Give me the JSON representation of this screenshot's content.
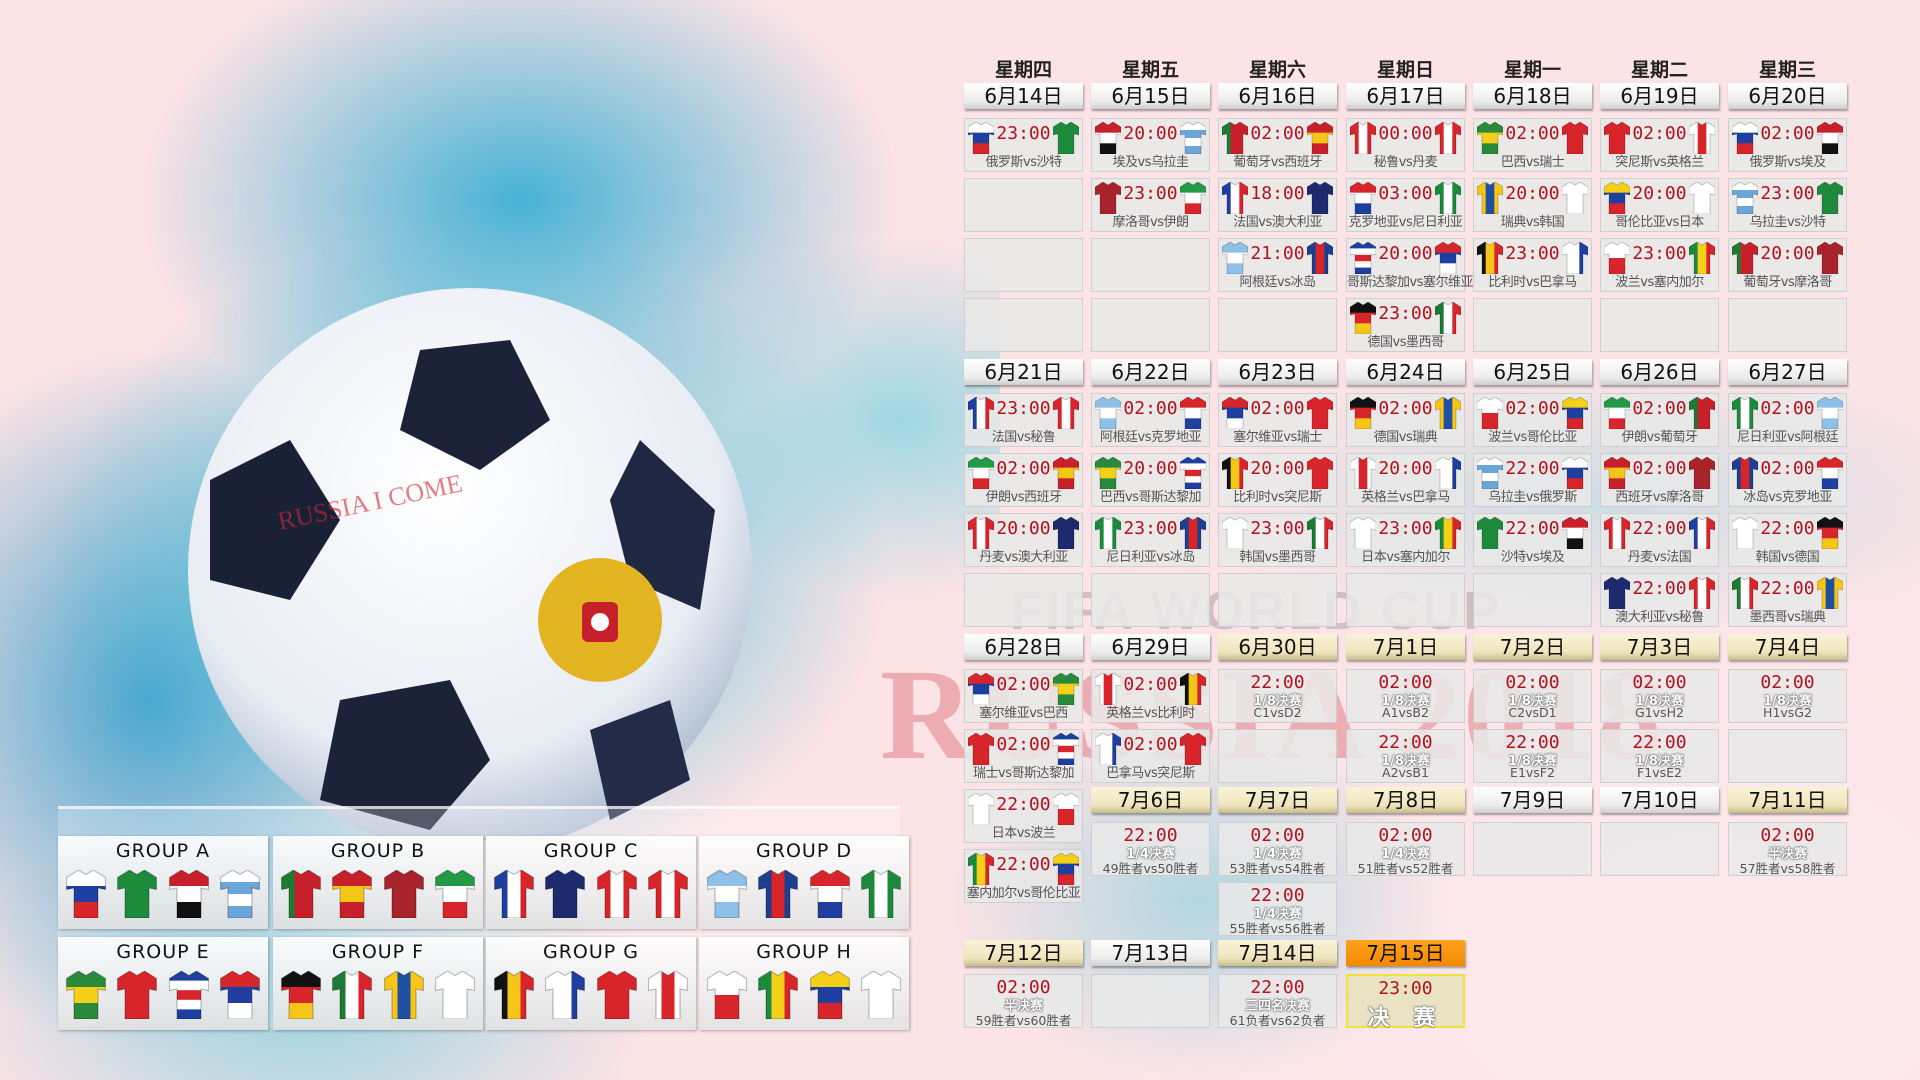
{
  "watermarks": {
    "fifa": "FIFA WORLD CUP",
    "russia": "RUSSIA 2018"
  },
  "ball_text": "RUSSIA I COME",
  "weekdays": [
    "星期四",
    "星期五",
    "星期六",
    "星期日",
    "星期一",
    "星期二",
    "星期三"
  ],
  "team_colors": {
    "俄罗斯": {
      "dir": "h",
      "c": [
        "#ffffff",
        "#1f3fa0",
        "#d8242b"
      ]
    },
    "沙特": {
      "dir": "h",
      "c": [
        "#1e8a3c"
      ]
    },
    "埃及": {
      "dir": "h",
      "c": [
        "#c8202a",
        "#ffffff",
        "#111111"
      ]
    },
    "乌拉圭": {
      "dir": "h",
      "c": [
        "#ffffff",
        "#6aa6d8",
        "#ffffff",
        "#6aa6d8"
      ]
    },
    "葡萄牙": {
      "dir": "v",
      "c": [
        "#1c7a32",
        "#c8202a",
        "#c8202a"
      ]
    },
    "西班牙": {
      "dir": "h",
      "c": [
        "#c8202a",
        "#f5c518",
        "#c8202a"
      ]
    },
    "摩洛哥": {
      "dir": "h",
      "c": [
        "#a9232b"
      ]
    },
    "伊朗": {
      "dir": "h",
      "c": [
        "#239a45",
        "#ffffff",
        "#d8242b"
      ]
    },
    "法国": {
      "dir": "v",
      "c": [
        "#1f3fa0",
        "#ffffff",
        "#d8242b"
      ]
    },
    "澳大利亚": {
      "dir": "h",
      "c": [
        "#1d2a6e"
      ]
    },
    "秘鲁": {
      "dir": "v",
      "c": [
        "#d8242b",
        "#ffffff",
        "#d8242b"
      ]
    },
    "丹麦": {
      "dir": "v",
      "c": [
        "#d8242b",
        "#ffffff",
        "#d8242b"
      ]
    },
    "阿根廷": {
      "dir": "h",
      "c": [
        "#8ec0e8",
        "#ffffff",
        "#8ec0e8"
      ]
    },
    "冰岛": {
      "dir": "v",
      "c": [
        "#1d3f8f",
        "#d8242b",
        "#1d3f8f"
      ]
    },
    "克罗地亚": {
      "dir": "h",
      "c": [
        "#d8242b",
        "#ffffff",
        "#1f3fa0"
      ]
    },
    "尼日利亚": {
      "dir": "v",
      "c": [
        "#1c8a3c",
        "#ffffff",
        "#1c8a3c"
      ]
    },
    "巴西": {
      "dir": "h",
      "c": [
        "#2a8a3c",
        "#f5d018",
        "#2a8a3c"
      ]
    },
    "瑞士": {
      "dir": "h",
      "c": [
        "#d8242b"
      ]
    },
    "哥斯达黎加": {
      "dir": "h",
      "c": [
        "#1f3fa0",
        "#ffffff",
        "#d8242b",
        "#ffffff",
        "#1f3fa0"
      ]
    },
    "塞尔维亚": {
      "dir": "h",
      "c": [
        "#d8242b",
        "#1f3fa0",
        "#ffffff"
      ]
    },
    "德国": {
      "dir": "h",
      "c": [
        "#111111",
        "#d8242b",
        "#f5c518"
      ]
    },
    "墨西哥": {
      "dir": "v",
      "c": [
        "#1c7a32",
        "#ffffff",
        "#d8242b"
      ]
    },
    "瑞典": {
      "dir": "v",
      "c": [
        "#f5c518",
        "#1f4fa0",
        "#f5c518"
      ]
    },
    "韩国": {
      "dir": "h",
      "c": [
        "#ffffff"
      ]
    },
    "比利时": {
      "dir": "v",
      "c": [
        "#111111",
        "#f5c518",
        "#d8242b"
      ]
    },
    "巴拿马": {
      "dir": "v",
      "c": [
        "#ffffff",
        "#ffffff",
        "#1f3fa0"
      ]
    },
    "突尼斯": {
      "dir": "h",
      "c": [
        "#d8242b"
      ]
    },
    "英格兰": {
      "dir": "v",
      "c": [
        "#ffffff",
        "#d8242b",
        "#ffffff"
      ]
    },
    "波兰": {
      "dir": "h",
      "c": [
        "#ffffff",
        "#d8242b"
      ]
    },
    "塞内加尔": {
      "dir": "v",
      "c": [
        "#1c8a3c",
        "#f5d018",
        "#d8242b"
      ]
    },
    "哥伦比亚": {
      "dir": "h",
      "c": [
        "#f5d018",
        "#1f3fa0",
        "#d8242b"
      ]
    },
    "日本": {
      "dir": "h",
      "c": [
        "#ffffff"
      ]
    }
  },
  "days": [
    {
      "date": "6月14日",
      "kind": "group",
      "matches": [
        {
          "time": "23:00",
          "teams": [
            "俄罗斯",
            "沙特"
          ],
          "label": "俄罗斯vs沙特"
        }
      ]
    },
    {
      "date": "6月15日",
      "kind": "group",
      "matches": [
        {
          "time": "20:00",
          "teams": [
            "埃及",
            "乌拉圭"
          ],
          "label": "埃及vs乌拉圭"
        },
        {
          "time": "23:00",
          "teams": [
            "摩洛哥",
            "伊朗"
          ],
          "label": "摩洛哥vs伊朗"
        }
      ]
    },
    {
      "date": "6月16日",
      "kind": "group",
      "matches": [
        {
          "time": "02:00",
          "teams": [
            "葡萄牙",
            "西班牙"
          ],
          "label": "葡萄牙vs西班牙"
        },
        {
          "time": "18:00",
          "teams": [
            "法国",
            "澳大利亚"
          ],
          "label": "法国vs澳大利亚"
        },
        {
          "time": "21:00",
          "teams": [
            "阿根廷",
            "冰岛"
          ],
          "label": "阿根廷vs冰岛"
        }
      ]
    },
    {
      "date": "6月17日",
      "kind": "group",
      "matches": [
        {
          "time": "00:00",
          "teams": [
            "秘鲁",
            "丹麦"
          ],
          "label": "秘鲁vs丹麦"
        },
        {
          "time": "03:00",
          "teams": [
            "克罗地亚",
            "尼日利亚"
          ],
          "label": "克罗地亚vs尼日利亚"
        },
        {
          "time": "20:00",
          "teams": [
            "哥斯达黎加",
            "塞尔维亚"
          ],
          "label": "哥斯达黎加vs塞尔维亚"
        },
        {
          "time": "23:00",
          "teams": [
            "德国",
            "墨西哥"
          ],
          "label": "德国vs墨西哥"
        }
      ]
    },
    {
      "date": "6月18日",
      "kind": "group",
      "matches": [
        {
          "time": "02:00",
          "teams": [
            "巴西",
            "瑞士"
          ],
          "label": "巴西vs瑞士"
        },
        {
          "time": "20:00",
          "teams": [
            "瑞典",
            "韩国"
          ],
          "label": "瑞典vs韩国"
        },
        {
          "time": "23:00",
          "teams": [
            "比利时",
            "巴拿马"
          ],
          "label": "比利时vs巴拿马"
        }
      ]
    },
    {
      "date": "6月19日",
      "kind": "group",
      "matches": [
        {
          "time": "02:00",
          "teams": [
            "突尼斯",
            "英格兰"
          ],
          "label": "突尼斯vs英格兰"
        },
        {
          "time": "20:00",
          "teams": [
            "哥伦比亚",
            "日本"
          ],
          "label": "哥伦比亚vs日本"
        },
        {
          "time": "23:00",
          "teams": [
            "波兰",
            "塞内加尔"
          ],
          "label": "波兰vs塞内加尔"
        }
      ]
    },
    {
      "date": "6月20日",
      "kind": "group",
      "matches": [
        {
          "time": "02:00",
          "teams": [
            "俄罗斯",
            "埃及"
          ],
          "label": "俄罗斯vs埃及"
        },
        {
          "time": "23:00",
          "teams": [
            "乌拉圭",
            "沙特"
          ],
          "label": "乌拉圭vs沙特"
        },
        {
          "time": "20:00",
          "teams": [
            "葡萄牙",
            "摩洛哥"
          ],
          "label": "葡萄牙vs摩洛哥"
        }
      ]
    },
    {
      "date": "6月21日",
      "kind": "group",
      "matches": [
        {
          "time": "23:00",
          "teams": [
            "法国",
            "秘鲁"
          ],
          "label": "法国vs秘鲁"
        },
        {
          "time": "02:00",
          "teams": [
            "伊朗",
            "西班牙"
          ],
          "label": "伊朗vs西班牙"
        },
        {
          "time": "20:00",
          "teams": [
            "丹麦",
            "澳大利亚"
          ],
          "label": "丹麦vs澳大利亚"
        }
      ]
    },
    {
      "date": "6月22日",
      "kind": "group",
      "matches": [
        {
          "time": "02:00",
          "teams": [
            "阿根廷",
            "克罗地亚"
          ],
          "label": "阿根廷vs克罗地亚"
        },
        {
          "time": "20:00",
          "teams": [
            "巴西",
            "哥斯达黎加"
          ],
          "label": "巴西vs哥斯达黎加"
        },
        {
          "time": "23:00",
          "teams": [
            "尼日利亚",
            "冰岛"
          ],
          "label": "尼日利亚vs冰岛"
        }
      ]
    },
    {
      "date": "6月23日",
      "kind": "group",
      "matches": [
        {
          "time": "02:00",
          "teams": [
            "塞尔维亚",
            "瑞士"
          ],
          "label": "塞尔维亚vs瑞士"
        },
        {
          "time": "20:00",
          "teams": [
            "比利时",
            "突尼斯"
          ],
          "label": "比利时vs突尼斯"
        },
        {
          "time": "23:00",
          "teams": [
            "韩国",
            "墨西哥"
          ],
          "label": "韩国vs墨西哥"
        }
      ]
    },
    {
      "date": "6月24日",
      "kind": "group",
      "matches": [
        {
          "time": "02:00",
          "teams": [
            "德国",
            "瑞典"
          ],
          "label": "德国vs瑞典"
        },
        {
          "time": "20:00",
          "teams": [
            "英格兰",
            "巴拿马"
          ],
          "label": "英格兰vs巴拿马"
        },
        {
          "time": "23:00",
          "teams": [
            "日本",
            "塞内加尔"
          ],
          "label": "日本vs塞内加尔"
        }
      ]
    },
    {
      "date": "6月25日",
      "kind": "group",
      "matches": [
        {
          "time": "02:00",
          "teams": [
            "波兰",
            "哥伦比亚"
          ],
          "label": "波兰vs哥伦比亚"
        },
        {
          "time": "22:00",
          "teams": [
            "乌拉圭",
            "俄罗斯"
          ],
          "label": "乌拉圭vs俄罗斯"
        },
        {
          "time": "22:00",
          "teams": [
            "沙特",
            "埃及"
          ],
          "label": "沙特vs埃及"
        }
      ]
    },
    {
      "date": "6月26日",
      "kind": "group",
      "matches": [
        {
          "time": "02:00",
          "teams": [
            "伊朗",
            "葡萄牙"
          ],
          "label": "伊朗vs葡萄牙"
        },
        {
          "time": "02:00",
          "teams": [
            "西班牙",
            "摩洛哥"
          ],
          "label": "西班牙vs摩洛哥"
        },
        {
          "time": "22:00",
          "teams": [
            "丹麦",
            "法国"
          ],
          "label": "丹麦vs法国"
        },
        {
          "time": "22:00",
          "teams": [
            "澳大利亚",
            "秘鲁"
          ],
          "label": "澳大利亚vs秘鲁"
        }
      ]
    },
    {
      "date": "6月27日",
      "kind": "group",
      "matches": [
        {
          "time": "02:00",
          "teams": [
            "尼日利亚",
            "阿根廷"
          ],
          "label": "尼日利亚vs阿根廷"
        },
        {
          "time": "02:00",
          "teams": [
            "冰岛",
            "克罗地亚"
          ],
          "label": "冰岛vs克罗地亚"
        },
        {
          "time": "22:00",
          "teams": [
            "韩国",
            "德国"
          ],
          "label": "韩国vs德国"
        },
        {
          "time": "22:00",
          "teams": [
            "墨西哥",
            "瑞典"
          ],
          "label": "墨西哥vs瑞典"
        }
      ]
    },
    {
      "date": "6月28日",
      "kind": "group",
      "matches": [
        {
          "time": "02:00",
          "teams": [
            "塞尔维亚",
            "巴西"
          ],
          "label": "塞尔维亚vs巴西"
        },
        {
          "time": "02:00",
          "teams": [
            "瑞士",
            "哥斯达黎加"
          ],
          "label": "瑞士vs哥斯达黎加"
        },
        {
          "time": "22:00",
          "teams": [
            "日本",
            "波兰"
          ],
          "label": "日本vs波兰"
        },
        {
          "time": "22:00",
          "teams": [
            "塞内加尔",
            "哥伦比亚"
          ],
          "label": "塞内加尔vs哥伦比亚"
        }
      ]
    },
    {
      "date": "6月29日",
      "kind": "group",
      "matches": [
        {
          "time": "02:00",
          "teams": [
            "英格兰",
            "比利时"
          ],
          "label": "英格兰vs比利时"
        },
        {
          "time": "02:00",
          "teams": [
            "巴拿马",
            "突尼斯"
          ],
          "label": "巴拿马vs突尼斯"
        }
      ]
    },
    {
      "date": "6月30日",
      "kind": "knockout",
      "matches": [
        {
          "time": "22:00",
          "stage": "1/8决赛",
          "pair": "C1vsD2"
        }
      ]
    },
    {
      "date": "7月1日",
      "kind": "knockout",
      "matches": [
        {
          "time": "02:00",
          "stage": "1/8决赛",
          "pair": "A1vsB2"
        },
        {
          "time": "22:00",
          "stage": "1/8决赛",
          "pair": "A2vsB1"
        }
      ]
    },
    {
      "date": "7月2日",
      "kind": "knockout",
      "matches": [
        {
          "time": "02:00",
          "stage": "1/8决赛",
          "pair": "C2vsD1"
        },
        {
          "time": "22:00",
          "stage": "1/8决赛",
          "pair": "E1vsF2"
        }
      ]
    },
    {
      "date": "7月3日",
      "kind": "knockout",
      "matches": [
        {
          "time": "02:00",
          "stage": "1/8决赛",
          "pair": "G1vsH2"
        },
        {
          "time": "22:00",
          "stage": "1/8决赛",
          "pair": "F1vsE2"
        }
      ]
    },
    {
      "date": "7月4日",
      "kind": "knockout",
      "matches": [
        {
          "time": "02:00",
          "stage": "1/8决赛",
          "pair": "H1vsG2"
        }
      ]
    },
    {
      "date": "7月6日",
      "kind": "knockout",
      "matches": [
        {
          "time": "22:00",
          "stage": "1/4决赛",
          "pair": "49胜者vs50胜者"
        }
      ]
    },
    {
      "date": "7月7日",
      "kind": "knockout",
      "matches": [
        {
          "time": "02:00",
          "stage": "1/4决赛",
          "pair": "53胜者vs54胜者"
        },
        {
          "time": "22:00",
          "stage": "1/4决赛",
          "pair": "55胜者vs56胜者"
        }
      ]
    },
    {
      "date": "7月8日",
      "kind": "knockout",
      "matches": [
        {
          "time": "02:00",
          "stage": "1/4决赛",
          "pair": "51胜者vs52胜者"
        }
      ]
    },
    {
      "date": "7月9日",
      "kind": "none",
      "matches": []
    },
    {
      "date": "7月10日",
      "kind": "none",
      "matches": []
    },
    {
      "date": "7月11日",
      "kind": "knockout",
      "matches": [
        {
          "time": "02:00",
          "stage": "半决赛",
          "pair": "57胜者vs58胜者"
        }
      ]
    },
    {
      "date": "7月12日",
      "kind": "knockout",
      "matches": [
        {
          "time": "02:00",
          "stage": "半决赛",
          "pair": "59胜者vs60胜者"
        }
      ]
    },
    {
      "date": "7月13日",
      "kind": "none",
      "matches": []
    },
    {
      "date": "7月14日",
      "kind": "knockout",
      "matches": [
        {
          "time": "22:00",
          "stage": "三四名决赛",
          "pair": "61负者vs62负者"
        }
      ]
    },
    {
      "date": "7月15日",
      "kind": "final",
      "matches": [
        {
          "time": "23:00",
          "stage": "决 赛",
          "pair": ""
        }
      ]
    }
  ],
  "groups": [
    {
      "title": "GROUP A",
      "teams": [
        "俄罗斯",
        "沙特",
        "埃及",
        "乌拉圭"
      ]
    },
    {
      "title": "GROUP B",
      "teams": [
        "葡萄牙",
        "西班牙",
        "摩洛哥",
        "伊朗"
      ]
    },
    {
      "title": "GROUP C",
      "teams": [
        "法国",
        "澳大利亚",
        "秘鲁",
        "丹麦"
      ]
    },
    {
      "title": "GROUP D",
      "teams": [
        "阿根廷",
        "冰岛",
        "克罗地亚",
        "尼日利亚"
      ]
    },
    {
      "title": "GROUP E",
      "teams": [
        "巴西",
        "瑞士",
        "哥斯达黎加",
        "塞尔维亚"
      ]
    },
    {
      "title": "GROUP F",
      "teams": [
        "德国",
        "墨西哥",
        "瑞典",
        "韩国"
      ]
    },
    {
      "title": "GROUP G",
      "teams": [
        "比利时",
        "巴拿马",
        "突尼斯",
        "英格兰"
      ]
    },
    {
      "title": "GROUP H",
      "teams": [
        "波兰",
        "塞内加尔",
        "哥伦比亚",
        "日本"
      ]
    }
  ]
}
